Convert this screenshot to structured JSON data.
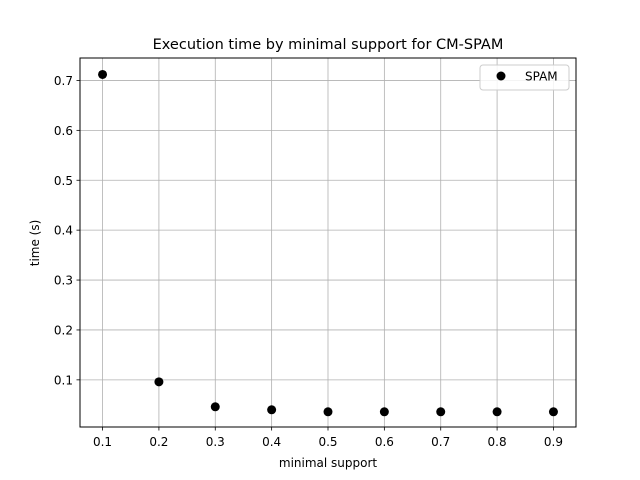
{
  "chart_data": {
    "type": "scatter",
    "title": "Execution time by minimal support for CM-SPAM",
    "xlabel": "minimal support",
    "ylabel": "time (s)",
    "xlim": [
      0.06,
      0.94
    ],
    "ylim": [
      0.0055,
      0.745
    ],
    "xticks": [
      0.1,
      0.2,
      0.3,
      0.4,
      0.5,
      0.6,
      0.7,
      0.8,
      0.9
    ],
    "xtick_labels": [
      "0.1",
      "0.2",
      "0.3",
      "0.4",
      "0.5",
      "0.6",
      "0.7",
      "0.8",
      "0.9"
    ],
    "yticks": [
      0.1,
      0.2,
      0.3,
      0.4,
      0.5,
      0.6,
      0.7
    ],
    "ytick_labels": [
      "0.1",
      "0.2",
      "0.3",
      "0.4",
      "0.5",
      "0.6",
      "0.7"
    ],
    "grid": true,
    "legend_position": "top-right",
    "series": [
      {
        "name": "SPAM",
        "color": "#000000",
        "marker": "circle",
        "x": [
          0.1,
          0.2,
          0.3,
          0.4,
          0.5,
          0.6,
          0.7,
          0.8,
          0.9
        ],
        "y": [
          0.712,
          0.096,
          0.046,
          0.04,
          0.036,
          0.036,
          0.036,
          0.036,
          0.036
        ]
      }
    ]
  }
}
